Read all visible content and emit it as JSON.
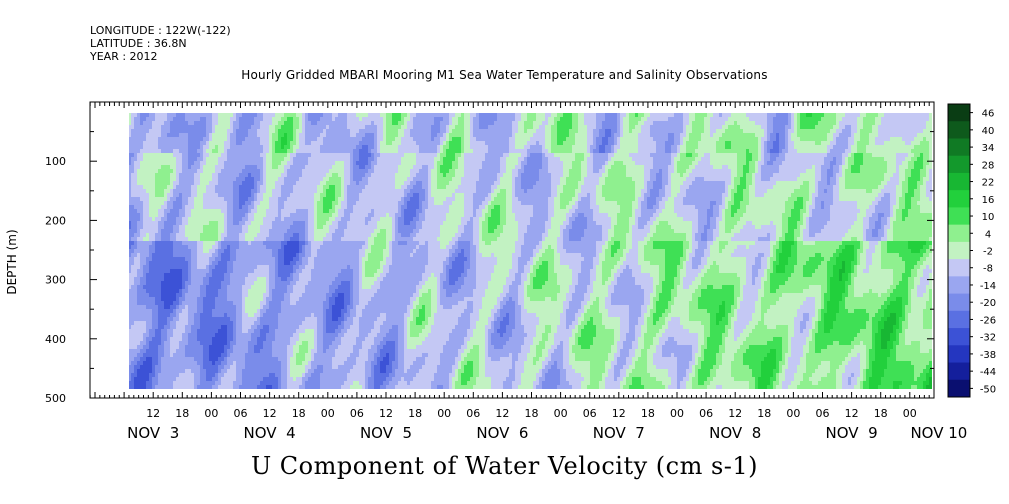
{
  "header": {
    "longitude": "LONGITUDE : 122W(-122)",
    "latitude": "LATITUDE : 36.8N",
    "year": "YEAR : 2012"
  },
  "chart_data": {
    "type": "heatmap",
    "title": "Hourly Gridded MBARI Mooring M1 Sea Water Temperature and Salinity Observations",
    "xlabel": "U Component of Water Velocity (cm s-1)",
    "ylabel": "DEPTH (m)",
    "ylim": [
      500,
      0
    ],
    "y_ticks": [
      100,
      200,
      300,
      400,
      500
    ],
    "y_tick_labels": [
      "100",
      "200",
      "300",
      "400",
      "500"
    ],
    "x_range_hours": [
      0,
      184
    ],
    "x_hour_ticks": [
      {
        "h": 12,
        "label": "12"
      },
      {
        "h": 18,
        "label": "18"
      },
      {
        "h": 24,
        "label": "00"
      },
      {
        "h": 30,
        "label": "06"
      },
      {
        "h": 36,
        "label": "12"
      },
      {
        "h": 42,
        "label": "18"
      },
      {
        "h": 48,
        "label": "00"
      },
      {
        "h": 54,
        "label": "06"
      },
      {
        "h": 60,
        "label": "12"
      },
      {
        "h": 66,
        "label": "18"
      },
      {
        "h": 72,
        "label": "00"
      },
      {
        "h": 78,
        "label": "06"
      },
      {
        "h": 84,
        "label": "12"
      },
      {
        "h": 90,
        "label": "18"
      },
      {
        "h": 96,
        "label": "00"
      },
      {
        "h": 102,
        "label": "06"
      },
      {
        "h": 108,
        "label": "12"
      },
      {
        "h": 114,
        "label": "18"
      },
      {
        "h": 120,
        "label": "00"
      },
      {
        "h": 126,
        "label": "06"
      },
      {
        "h": 132,
        "label": "12"
      },
      {
        "h": 138,
        "label": "18"
      },
      {
        "h": 144,
        "label": "00"
      },
      {
        "h": 150,
        "label": "06"
      },
      {
        "h": 156,
        "label": "12"
      },
      {
        "h": 162,
        "label": "18"
      },
      {
        "h": 168,
        "label": "00"
      },
      {
        "h": 174,
        "label": "06"
      },
      {
        "h": 180,
        "label": "12"
      },
      {
        "h": 186,
        "label": "18"
      },
      {
        "h": 192,
        "label": "00"
      },
      {
        "h": 198,
        "label": "06"
      }
    ],
    "day_labels": [
      {
        "h": 12,
        "label": "NOV  3"
      },
      {
        "h": 36,
        "label": "NOV  4"
      },
      {
        "h": 60,
        "label": "NOV  5"
      },
      {
        "h": 84,
        "label": "NOV  6"
      },
      {
        "h": 108,
        "label": "NOV  7"
      },
      {
        "h": 132,
        "label": "NOV  8"
      },
      {
        "h": 156,
        "label": "NOV  9"
      },
      {
        "h": 174,
        "label": "NOV 10"
      }
    ],
    "colorbar_levels": [
      46,
      40,
      34,
      28,
      22,
      16,
      10,
      4,
      -2,
      -8,
      -14,
      -20,
      -26,
      -32,
      -38,
      -44,
      -50
    ],
    "colorbar_labels": [
      "46",
      "40",
      "34",
      "28",
      "22",
      "16",
      "10",
      "4",
      "-2",
      "-8",
      "-14",
      "-20",
      "-26",
      "-32",
      "-38",
      "-44",
      "-50"
    ],
    "colorbar_colors": [
      "#0a3d14",
      "#0e5a1c",
      "#107a24",
      "#13992c",
      "#18b733",
      "#22d03c",
      "#3fe055",
      "#8ff08f",
      "#c2f2c2",
      "#c4c8f4",
      "#9aa6f0",
      "#7a8cea",
      "#5a70e2",
      "#3c52d6",
      "#2436c0",
      "#141f9c",
      "#0a0f70"
    ],
    "data_start_hour": 0,
    "data_end_hour": 184
  }
}
